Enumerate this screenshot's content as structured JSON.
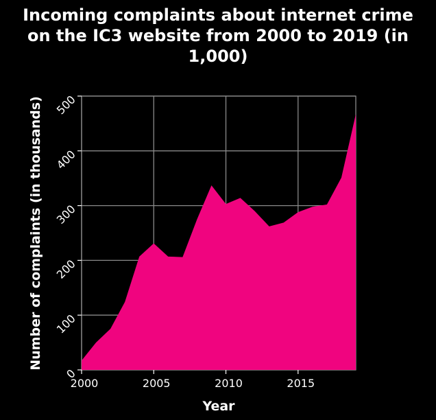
{
  "chart_data": {
    "type": "area",
    "title": "Incoming complaints about internet crime on the IC3 website from 2000 to 2019 (in 1,000)",
    "title_lines": [
      "Incoming complaints about internet crime",
      "on the IC3 website from 2000 to 2019 (in",
      "1,000)"
    ],
    "xlabel": "Year",
    "ylabel": "Number of complaints (in thousands)",
    "x": [
      2000,
      2001,
      2002,
      2003,
      2004,
      2005,
      2006,
      2007,
      2008,
      2009,
      2010,
      2011,
      2012,
      2013,
      2014,
      2015,
      2016,
      2017,
      2018,
      2019
    ],
    "values": [
      17,
      50,
      75,
      124,
      207,
      231,
      207,
      206,
      275,
      337,
      303,
      314,
      290,
      262,
      269,
      288,
      298,
      302,
      351,
      467
    ],
    "xlim": [
      2000,
      2019
    ],
    "ylim": [
      0,
      500
    ],
    "x_ticks": [
      2000,
      2005,
      2010,
      2015
    ],
    "x_tick_labels": [
      "2000",
      "2005",
      "2010",
      "2015"
    ],
    "y_ticks": [
      0,
      100,
      200,
      300,
      400,
      500
    ],
    "y_tick_labels": [
      "0",
      "100",
      "200",
      "300",
      "400",
      "500"
    ],
    "grid": true,
    "fill_color": "#f0047f",
    "background_color": "#000000",
    "grid_color": "#8a8a8a",
    "text_color": "#ffffff"
  }
}
